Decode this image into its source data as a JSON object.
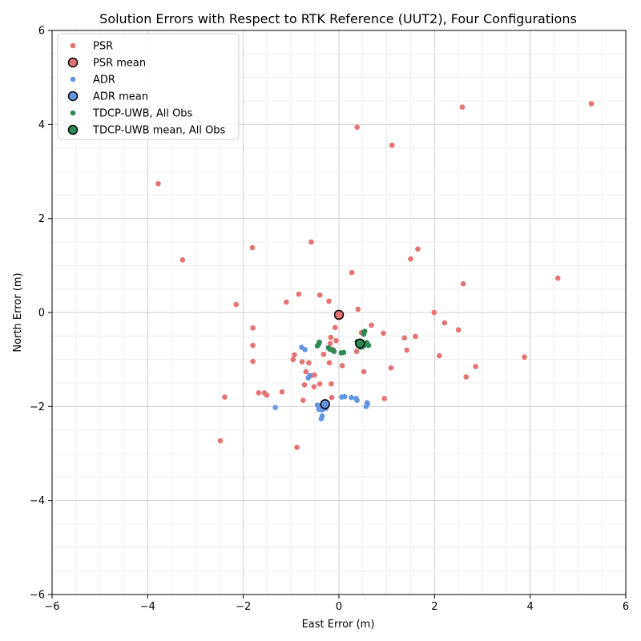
{
  "chart_data": {
    "type": "scatter",
    "title": "Solution Errors with Respect to RTK Reference (UUT2), Four Configurations",
    "xlabel": "East Error (m)",
    "ylabel": "North Error (m)",
    "xlim": [
      -6,
      6
    ],
    "ylim": [
      -6,
      6
    ],
    "x_ticks": [
      -6,
      -4,
      -2,
      0,
      2,
      4,
      6
    ],
    "y_ticks": [
      -6,
      -4,
      -2,
      0,
      2,
      4,
      6
    ],
    "grid": true,
    "minor_grid": true,
    "legend_position": "top-left",
    "series": [
      {
        "name": "PSR",
        "kind": "points",
        "color": "#e57373",
        "points": [
          [
            5.28,
            4.44
          ],
          [
            2.58,
            4.37
          ],
          [
            0.38,
            3.94
          ],
          [
            1.11,
            3.56
          ],
          [
            -3.78,
            2.74
          ],
          [
            -3.27,
            1.12
          ],
          [
            -1.81,
            1.38
          ],
          [
            -0.58,
            1.5
          ],
          [
            1.65,
            1.35
          ],
          [
            1.5,
            1.14
          ],
          [
            0.27,
            0.85
          ],
          [
            2.6,
            0.61
          ],
          [
            4.58,
            0.73
          ],
          [
            -2.15,
            0.17
          ],
          [
            -1.1,
            0.22
          ],
          [
            -0.84,
            0.39
          ],
          [
            -0.4,
            0.37
          ],
          [
            -0.21,
            0.24
          ],
          [
            0.4,
            0.07
          ],
          [
            1.99,
            0.0
          ],
          [
            2.21,
            -0.22
          ],
          [
            2.5,
            -0.37
          ],
          [
            -1.8,
            -0.33
          ],
          [
            -0.08,
            -0.32
          ],
          [
            0.68,
            -0.27
          ],
          [
            0.47,
            -0.43
          ],
          [
            0.93,
            -0.44
          ],
          [
            1.37,
            -0.54
          ],
          [
            1.6,
            -0.51
          ],
          [
            -0.17,
            -0.53
          ],
          [
            -0.06,
            -0.6
          ],
          [
            -0.18,
            -0.66
          ],
          [
            -1.8,
            -0.7
          ],
          [
            -0.12,
            -0.79
          ],
          [
            0.37,
            -0.83
          ],
          [
            1.42,
            -0.8
          ],
          [
            2.1,
            -0.92
          ],
          [
            3.88,
            -0.95
          ],
          [
            -0.93,
            -0.9
          ],
          [
            -0.96,
            -1.0
          ],
          [
            -0.32,
            -0.89
          ],
          [
            -0.77,
            -1.05
          ],
          [
            -0.63,
            -1.07
          ],
          [
            -0.2,
            -1.07
          ],
          [
            0.07,
            -1.13
          ],
          [
            1.09,
            -1.18
          ],
          [
            2.86,
            -1.15
          ],
          [
            -1.8,
            -1.04
          ],
          [
            -0.69,
            -1.26
          ],
          [
            -0.57,
            -1.34
          ],
          [
            -0.51,
            -1.33
          ],
          [
            0.52,
            -1.26
          ],
          [
            2.66,
            -1.37
          ],
          [
            -0.72,
            -1.54
          ],
          [
            -0.4,
            -1.52
          ],
          [
            -0.16,
            -1.52
          ],
          [
            -0.52,
            -1.58
          ],
          [
            -1.68,
            -1.71
          ],
          [
            -1.56,
            -1.71
          ],
          [
            -1.51,
            -1.76
          ],
          [
            -1.19,
            -1.69
          ],
          [
            -2.39,
            -1.8
          ],
          [
            -0.75,
            -1.87
          ],
          [
            -0.15,
            -1.81
          ],
          [
            0.95,
            -1.83
          ],
          [
            -2.48,
            -2.73
          ],
          [
            -0.88,
            -2.87
          ]
        ]
      },
      {
        "name": "PSR mean",
        "kind": "mean",
        "color": "#e57373",
        "points": [
          [
            0.0,
            -0.05
          ]
        ]
      },
      {
        "name": "ADR",
        "kind": "points",
        "color": "#6495e0",
        "points": [
          [
            -0.78,
            -0.74
          ],
          [
            -0.71,
            -0.79
          ],
          [
            -0.64,
            -1.39
          ],
          [
            -0.61,
            -1.34
          ],
          [
            -1.33,
            -2.02
          ],
          [
            0.06,
            -1.8
          ],
          [
            0.12,
            -1.79
          ],
          [
            0.26,
            -1.81
          ],
          [
            0.36,
            -1.83
          ],
          [
            0.38,
            -1.87
          ],
          [
            0.59,
            -1.92
          ],
          [
            0.6,
            -1.94
          ],
          [
            0.57,
            -2.0
          ],
          [
            -0.45,
            -1.97
          ],
          [
            -0.4,
            -2.0
          ],
          [
            -0.37,
            -2.02
          ],
          [
            -0.33,
            -1.99
          ],
          [
            -0.3,
            -2.03
          ],
          [
            -0.27,
            -2.04
          ],
          [
            -0.26,
            -1.98
          ],
          [
            -0.42,
            -2.06
          ],
          [
            -0.36,
            -2.07
          ],
          [
            -0.31,
            -2.05
          ],
          [
            -0.35,
            -2.2
          ],
          [
            -0.37,
            -2.26
          ]
        ]
      },
      {
        "name": "ADR mean",
        "kind": "mean",
        "color": "#6495e0",
        "points": [
          [
            -0.29,
            -1.95
          ]
        ]
      },
      {
        "name": "TDCP-UWB, All Obs",
        "kind": "points",
        "color": "#2e8b57",
        "points": [
          [
            -0.41,
            -0.63
          ],
          [
            -0.42,
            -0.67
          ],
          [
            -0.45,
            -0.71
          ],
          [
            -0.22,
            -0.75
          ],
          [
            -0.19,
            -0.78
          ],
          [
            -0.14,
            -0.8
          ],
          [
            -0.1,
            -0.83
          ],
          [
            0.05,
            -0.86
          ],
          [
            0.1,
            -0.85
          ],
          [
            0.52,
            -0.42
          ],
          [
            0.54,
            -0.4
          ],
          [
            0.52,
            -0.46
          ],
          [
            0.38,
            -0.62
          ],
          [
            0.42,
            -0.66
          ],
          [
            0.46,
            -0.7
          ],
          [
            0.5,
            -0.73
          ],
          [
            0.55,
            -0.66
          ],
          [
            0.58,
            -0.64
          ],
          [
            0.6,
            -0.68
          ],
          [
            0.62,
            -0.7
          ],
          [
            0.48,
            -0.64
          ],
          [
            0.53,
            -0.7
          ],
          [
            0.45,
            -0.74
          ]
        ]
      },
      {
        "name": "TDCP-UWB mean, All Obs",
        "kind": "mean",
        "color": "#2e8b57",
        "points": [
          [
            0.44,
            -0.66
          ]
        ]
      }
    ]
  }
}
